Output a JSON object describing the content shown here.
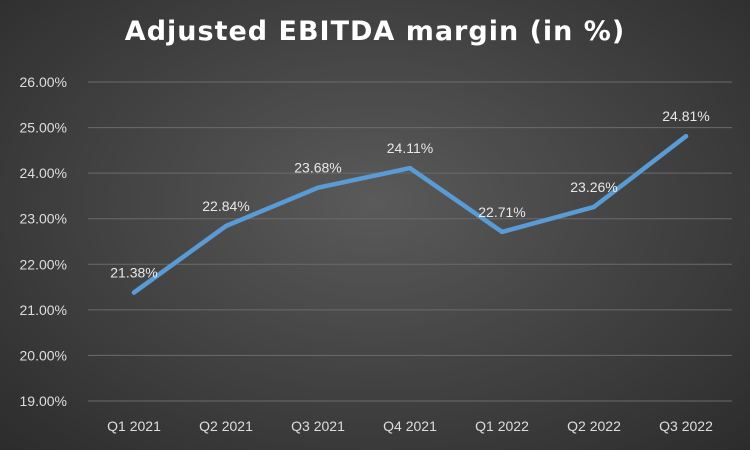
{
  "chart_data": {
    "type": "line",
    "title": "Adjusted EBITDA margin (in %)",
    "xlabel": "",
    "ylabel": "",
    "categories": [
      "Q1 2021",
      "Q2 2021",
      "Q3 2021",
      "Q4 2021",
      "Q1 2022",
      "Q2 2022",
      "Q3 2022"
    ],
    "series": [
      {
        "values": [
          21.38,
          22.84,
          23.68,
          24.11,
          22.71,
          23.26,
          24.81
        ]
      }
    ],
    "data_labels": [
      "21.38%",
      "22.84%",
      "23.68%",
      "24.11%",
      "22.71%",
      "23.26%",
      "24.81%"
    ],
    "yticks": [
      19,
      20,
      21,
      22,
      23,
      24,
      25,
      26
    ],
    "ytick_labels": [
      "19.00%",
      "20.00%",
      "21.00%",
      "22.00%",
      "23.00%",
      "24.00%",
      "25.00%",
      "26.00%"
    ],
    "ylim": [
      19,
      26
    ],
    "grid": true,
    "legend": "none",
    "colors": {
      "line": "#5b9bd5",
      "background": "#404040",
      "grid": "#6b6b6b",
      "text": "#dedede"
    }
  }
}
